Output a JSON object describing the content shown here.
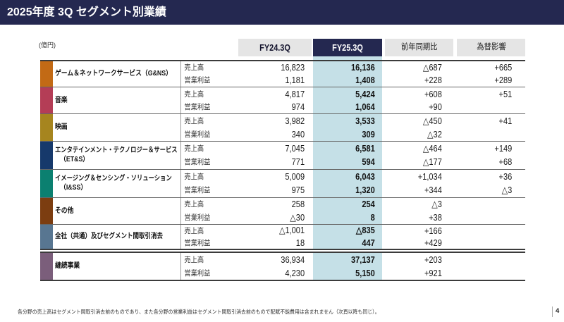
{
  "title": "2025年度 3Q セグメント別業績",
  "unit_label": "(億円)",
  "header": {
    "fy24": "FY24.3Q",
    "fy25": "FY25.3Q",
    "yoy": "前年同期比",
    "fx": "為替影響"
  },
  "metric_labels": {
    "sales": "売上高",
    "profit": "営業利益"
  },
  "colors": {
    "navy": "#242850",
    "highlight_band": "#C5E0E7",
    "header_gray": "#E5E5E5"
  },
  "segments": [
    {
      "name": "ゲーム＆ネットワークサービス（G&NS）",
      "name2": "",
      "color": "#C26A15",
      "sales": [
        "16,823",
        "16,136",
        "△687",
        "+665"
      ],
      "profit": [
        "1,181",
        "1,408",
        "+228",
        "+289"
      ]
    },
    {
      "name": "音楽",
      "name2": "",
      "color": "#B43D56",
      "sales": [
        "4,817",
        "5,424",
        "+608",
        "+51"
      ],
      "profit": [
        "974",
        "1,064",
        "+90",
        ""
      ]
    },
    {
      "name": "映画",
      "name2": "",
      "color": "#A6851F",
      "sales": [
        "3,982",
        "3,533",
        "△450",
        "+41"
      ],
      "profit": [
        "340",
        "309",
        "△32",
        ""
      ]
    },
    {
      "name": "エンタテインメント・テクノロジー＆サービス",
      "name2": "（ET&S）",
      "color": "#16396B",
      "sales": [
        "7,045",
        "6,581",
        "△464",
        "+149"
      ],
      "profit": [
        "771",
        "594",
        "△177",
        "+68"
      ]
    },
    {
      "name": "イメージング＆センシング・ソリューション",
      "name2": "（I&SS）",
      "color": "#0B8070",
      "sales": [
        "5,009",
        "6,043",
        "+1,034",
        "+36"
      ],
      "profit": [
        "975",
        "1,320",
        "+344",
        "△3"
      ]
    },
    {
      "name": "その他",
      "name2": "",
      "color": "#7C3D10",
      "sales": [
        "258",
        "254",
        "△3",
        ""
      ],
      "profit": [
        "△30",
        "8",
        "+38",
        ""
      ]
    },
    {
      "name": "全社（共通）及びセグメント間取引消去",
      "name2": "",
      "color": "#587691",
      "sales": [
        "△1,001",
        "△835",
        "+166",
        ""
      ],
      "profit": [
        "18",
        "447",
        "+429",
        ""
      ]
    }
  ],
  "total": {
    "name": "継続事業",
    "color": "#7B5E7B",
    "sales": [
      "36,934",
      "37,137",
      "+203",
      ""
    ],
    "profit": [
      "4,230",
      "5,150",
      "+921",
      ""
    ]
  },
  "footnote": "各分野の売上高はセグメント間取引消去前のものであり、また各分野の営業利益はセグメント間取引消去前のもので配賦不能費用は含まれません（次頁以降も同じ）。",
  "page_number": "4"
}
